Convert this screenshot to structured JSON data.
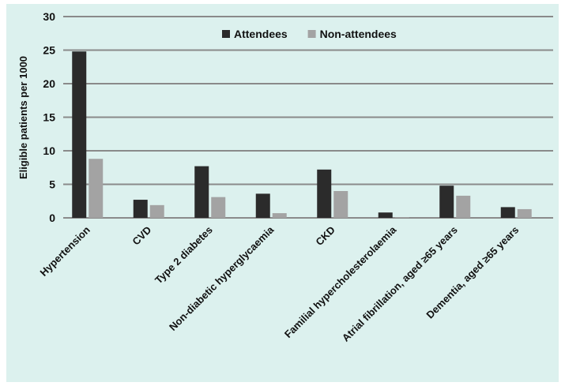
{
  "chart_data": {
    "type": "bar",
    "title": "",
    "xlabel": "",
    "ylabel": "Eligible patients per 1000",
    "ylim": [
      0,
      30
    ],
    "yticks": [
      0,
      5,
      10,
      15,
      20,
      25,
      30
    ],
    "grid": true,
    "legend_position": "top-center",
    "categories": [
      "Hypertension",
      "CVD",
      "Type 2 diabetes",
      "Non-diabetic hyperglycaemia",
      "CKD",
      "Familial hypercholesterolaemia",
      "Atrial fibrillation, aged ≥65 years",
      "Dementia, aged ≥65 years"
    ],
    "series": [
      {
        "name": "Attendees",
        "color": "#2b2b2b",
        "values": [
          24.8,
          2.7,
          7.7,
          3.6,
          7.2,
          0.8,
          4.8,
          1.6
        ]
      },
      {
        "name": "Non-attendees",
        "color": "#a3a3a3",
        "values": [
          8.8,
          1.9,
          3.1,
          0.7,
          4.0,
          0.1,
          3.3,
          1.3
        ]
      }
    ]
  }
}
